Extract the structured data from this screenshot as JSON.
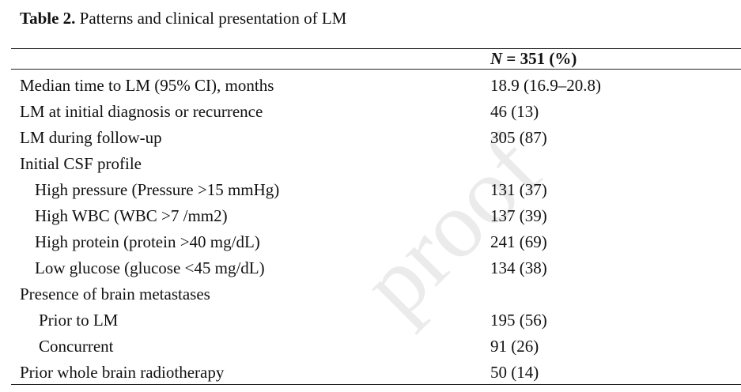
{
  "caption": {
    "label": "Table 2.",
    "text": "Patterns and clinical presentation of LM"
  },
  "column_header": {
    "n_symbol": "N",
    "rest": " = 351 (%)"
  },
  "rows": [
    {
      "label": "Median time to LM (95% CI), months",
      "value": "18.9 (16.9–20.8)"
    },
    {
      "label": "LM at initial diagnosis or recurrence",
      "value": "46 (13)"
    },
    {
      "label": "LM during follow-up",
      "value": "305 (87)"
    },
    {
      "label": "Initial CSF profile",
      "value": ""
    },
    {
      "label": "High pressure (Pressure >15 mmHg)",
      "value": "131 (37)"
    },
    {
      "label": "High WBC (WBC >7 /mm2)",
      "value": "137 (39)"
    },
    {
      "label": "High protein (protein >40 mg/dL)",
      "value": "241 (69)"
    },
    {
      "label": "Low glucose (glucose <45 mg/dL)",
      "value": "134 (38)"
    },
    {
      "label": "Presence of brain metastases",
      "value": ""
    },
    {
      "label": "Prior to LM",
      "value": "195 (56)"
    },
    {
      "label": "Concurrent",
      "value": "91 (26)"
    },
    {
      "label": "Prior whole brain radiotherapy",
      "value": "50 (14)"
    }
  ],
  "watermark": "proof"
}
